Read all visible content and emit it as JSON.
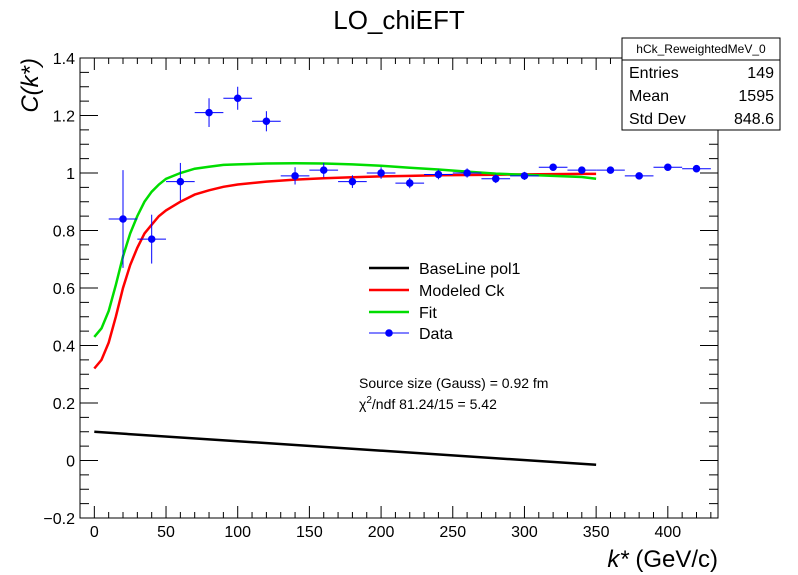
{
  "chart_data": {
    "type": "scatter",
    "title": "LO_chiEFT",
    "xlabel": "k* (GeV/c)",
    "ylabel": "C(k*)",
    "xlim": [
      -10,
      435
    ],
    "ylim": [
      -0.2,
      1.4
    ],
    "x_ticks": [
      0,
      50,
      100,
      150,
      200,
      250,
      300,
      350,
      400
    ],
    "y_ticks": [
      -0.2,
      0,
      0.2,
      0.4,
      0.6,
      0.8,
      1,
      1.2,
      1.4
    ],
    "x_tick_labels": [
      "0",
      "50",
      "100",
      "150",
      "200",
      "250",
      "300",
      "350",
      "400"
    ],
    "y_tick_labels": [
      "−0.2",
      "0",
      "0.2",
      "0.4",
      "0.6",
      "0.8",
      "1",
      "1.2",
      "1.4"
    ],
    "stats_box": {
      "name": "hCk_ReweightedMeV_0",
      "rows": [
        {
          "label": "Entries",
          "value": "149"
        },
        {
          "label": "Mean",
          "value": "1595"
        },
        {
          "label": "Std Dev",
          "value": "848.6"
        }
      ]
    },
    "legend": {
      "position": "center",
      "entries": [
        {
          "label": "BaseLine pol1",
          "color": "#000000",
          "kind": "line"
        },
        {
          "label": "Modeled Ck",
          "color": "#ff0000",
          "kind": "line"
        },
        {
          "label": "Fit",
          "color": "#00dd00",
          "kind": "line"
        },
        {
          "label": "Data",
          "color": "#0000ff",
          "kind": "marker"
        }
      ]
    },
    "annotations": {
      "source": "Source size (Gauss) = 0.92 fm",
      "chi2_prefix": "χ",
      "chi2_sup": "2",
      "chi2_rest": "/ndf 81.24/15 = 5.42"
    },
    "series": [
      {
        "name": "Data",
        "color": "#0000ff",
        "x": [
          20,
          40,
          60,
          80,
          100,
          120,
          140,
          160,
          180,
          200,
          220,
          240,
          260,
          280,
          300,
          320,
          340,
          360,
          380,
          400,
          420
        ],
        "y": [
          0.84,
          0.77,
          0.97,
          1.21,
          1.26,
          1.18,
          0.99,
          1.01,
          0.97,
          1.0,
          0.965,
          0.995,
          1.0,
          0.98,
          0.99,
          1.02,
          1.01,
          1.01,
          0.99,
          1.02,
          1.015
        ],
        "xerr": 10,
        "yerr": [
          0.17,
          0.085,
          0.065,
          0.05,
          0.04,
          0.035,
          0.03,
          0.025,
          0.022,
          0.02,
          0.018,
          0.017,
          0.016,
          0.015,
          0.014,
          0.013,
          0.012,
          0.011,
          0.01,
          0.01,
          0.01
        ]
      },
      {
        "name": "BaseLine pol1",
        "color": "#000000",
        "x": [
          0,
          350
        ],
        "y": [
          0.1,
          -0.015
        ]
      },
      {
        "name": "Modeled Ck",
        "color": "#ff0000",
        "x": [
          0,
          5,
          10,
          15,
          20,
          25,
          30,
          35,
          40,
          45,
          50,
          60,
          70,
          80,
          90,
          100,
          120,
          140,
          160,
          180,
          200,
          220,
          240,
          260,
          280,
          300,
          320,
          340,
          350
        ],
        "y": [
          0.32,
          0.35,
          0.41,
          0.5,
          0.6,
          0.68,
          0.74,
          0.79,
          0.82,
          0.85,
          0.87,
          0.9,
          0.925,
          0.94,
          0.952,
          0.96,
          0.97,
          0.977,
          0.982,
          0.985,
          0.988,
          0.99,
          0.992,
          0.993,
          0.994,
          0.995,
          0.996,
          0.997,
          0.997
        ]
      },
      {
        "name": "Fit",
        "color": "#00dd00",
        "x": [
          0,
          5,
          10,
          15,
          20,
          25,
          30,
          35,
          40,
          45,
          50,
          60,
          70,
          80,
          90,
          100,
          120,
          140,
          160,
          180,
          200,
          220,
          240,
          260,
          280,
          300,
          320,
          340,
          350
        ],
        "y": [
          0.43,
          0.46,
          0.52,
          0.61,
          0.71,
          0.79,
          0.85,
          0.9,
          0.935,
          0.96,
          0.98,
          1.0,
          1.015,
          1.022,
          1.028,
          1.03,
          1.033,
          1.034,
          1.033,
          1.03,
          1.025,
          1.018,
          1.012,
          1.005,
          0.998,
          0.994,
          0.99,
          0.986,
          0.98
        ]
      }
    ]
  }
}
